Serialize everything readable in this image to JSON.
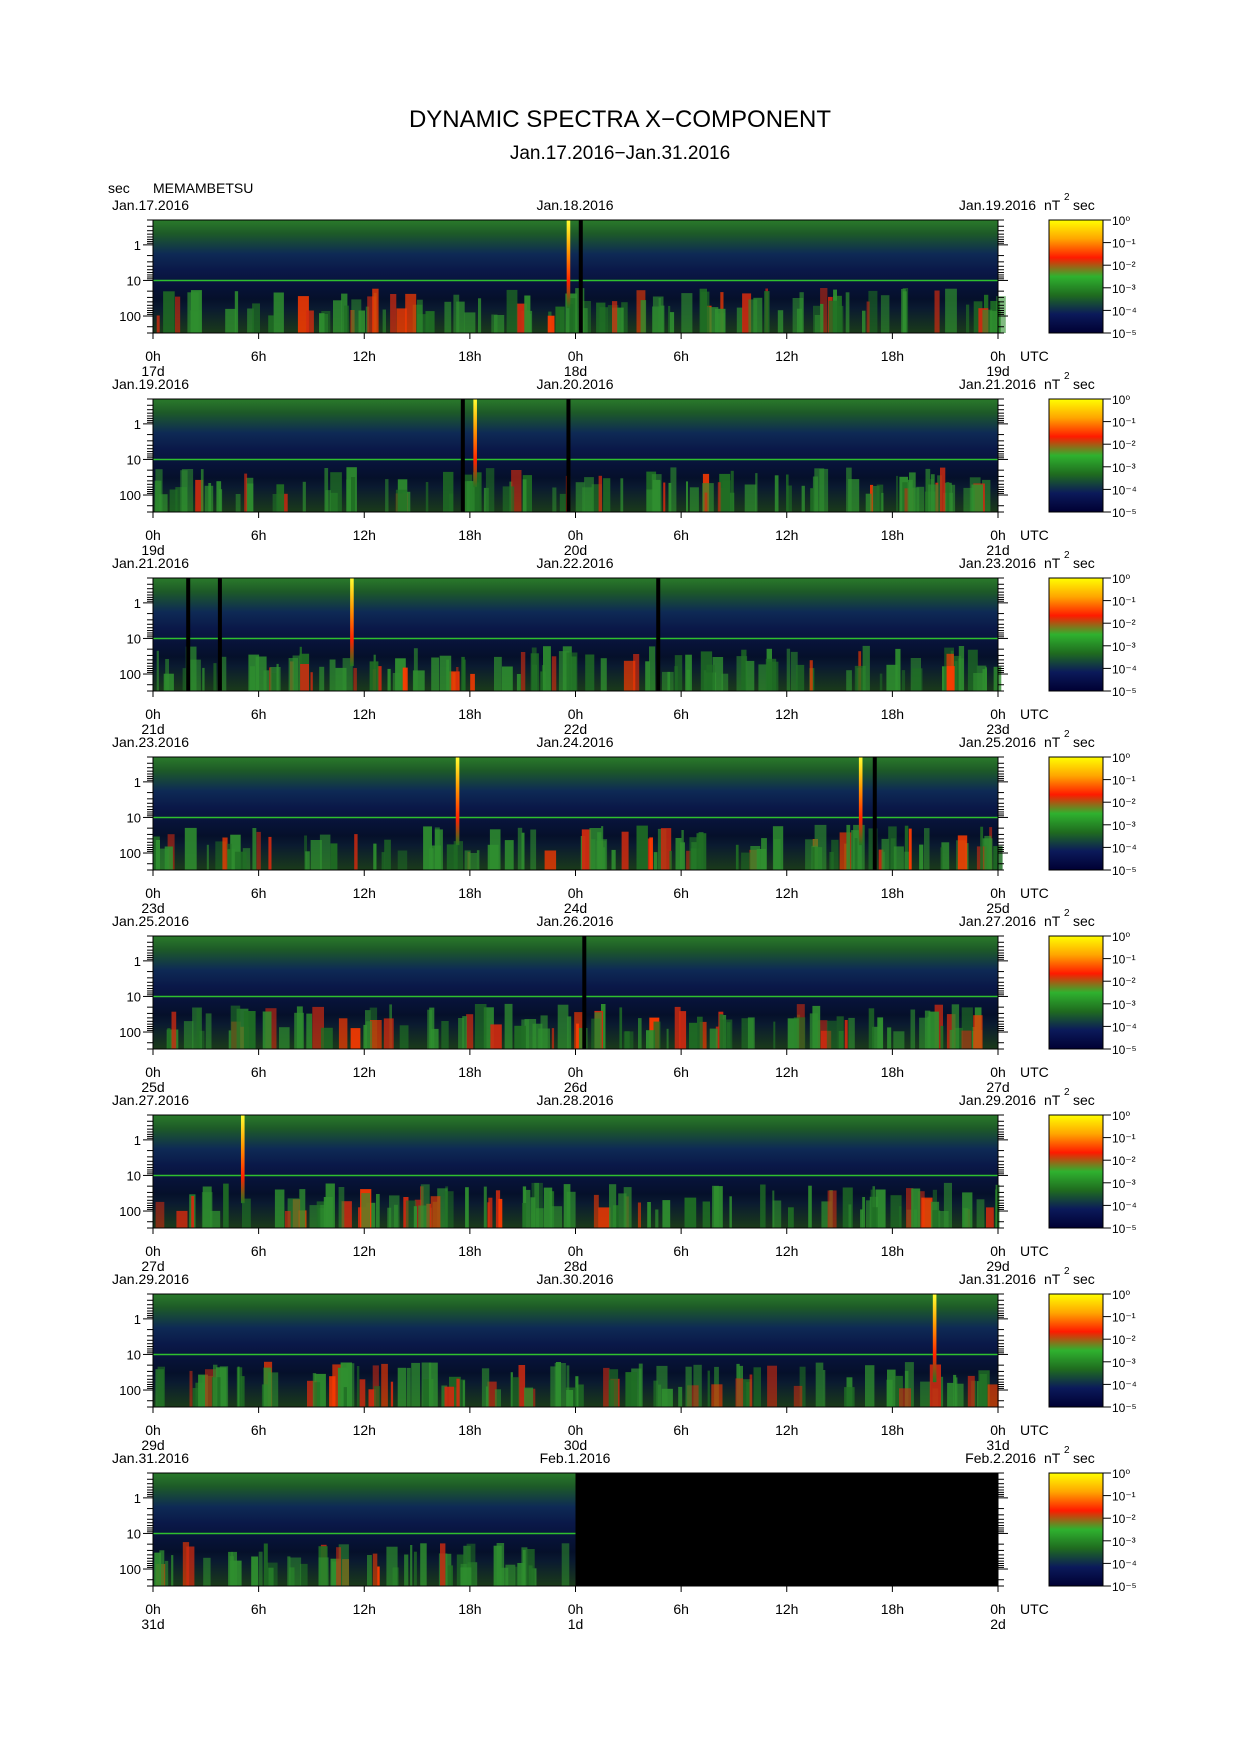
{
  "title": "DYNAMIC SPECTRA X−COMPONENT",
  "subtitle": "Jan.17.2016−Jan.31.2016",
  "y_unit": "sec",
  "station": "MEMAMBETSU",
  "colorbar_unit": "nT",
  "colorbar_unit_sup": "2",
  "colorbar_unit_suffix": "sec",
  "chart_data": {
    "type": "heatmap",
    "title": "DYNAMIC SPECTRA X−COMPONENT",
    "subtitle": "Jan.17.2016−Jan.31.2016",
    "ylabel": "sec",
    "y_scale": "log",
    "y_ticks": [
      "1",
      "10",
      "100"
    ],
    "y_range_sec": [
      0.2,
      300
    ],
    "x_ticks": [
      "0h",
      "6h",
      "12h",
      "18h",
      "0h",
      "6h",
      "12h",
      "18h",
      "0h"
    ],
    "x_unit": "UTC",
    "colorbar": {
      "label": "nT²sec",
      "scale": "log",
      "ticks": [
        "10⁰",
        "10⁻¹",
        "10⁻²",
        "10⁻³",
        "10⁻⁴",
        "10⁻⁵"
      ],
      "range": [
        1e-05,
        1
      ],
      "colors": [
        "#000033",
        "#0b1a5a",
        "#1f6b1f",
        "#2fb22f",
        "#ff1a00",
        "#ffa500",
        "#ffff00"
      ]
    },
    "panels": [
      {
        "start": "Jan.17.2016",
        "mid": "Jan.18.2016",
        "end": "Jan.19.2016",
        "days": [
          "17d",
          "18d",
          "19d"
        ],
        "bursts_h": [
          23.6
        ],
        "gaps_h": [
          24.3
        ],
        "no_data_from_h": null
      },
      {
        "start": "Jan.19.2016",
        "mid": "Jan.20.2016",
        "end": "Jan.21.2016",
        "days": [
          "19d",
          "20d",
          "21d"
        ],
        "bursts_h": [
          18.3
        ],
        "gaps_h": [
          17.6,
          23.6
        ],
        "no_data_from_h": null
      },
      {
        "start": "Jan.21.2016",
        "mid": "Jan.22.2016",
        "end": "Jan.23.2016",
        "days": [
          "21d",
          "22d",
          "23d"
        ],
        "bursts_h": [
          11.3
        ],
        "gaps_h": [
          2.0,
          3.8,
          28.7
        ],
        "no_data_from_h": null
      },
      {
        "start": "Jan.23.2016",
        "mid": "Jan.24.2016",
        "end": "Jan.25.2016",
        "days": [
          "23d",
          "24d",
          "25d"
        ],
        "bursts_h": [
          17.3,
          40.2
        ],
        "gaps_h": [
          41.0
        ],
        "no_data_from_h": null
      },
      {
        "start": "Jan.25.2016",
        "mid": "Jan.26.2016",
        "end": "Jan.27.2016",
        "days": [
          "25d",
          "26d",
          "27d"
        ],
        "bursts_h": [],
        "gaps_h": [
          24.5
        ],
        "no_data_from_h": null
      },
      {
        "start": "Jan.27.2016",
        "mid": "Jan.28.2016",
        "end": "Jan.29.2016",
        "days": [
          "27d",
          "28d",
          "29d"
        ],
        "bursts_h": [
          5.1
        ],
        "gaps_h": [],
        "no_data_from_h": null
      },
      {
        "start": "Jan.29.2016",
        "mid": "Jan.30.2016",
        "end": "Jan.31.2016",
        "days": [
          "29d",
          "30d",
          "31d"
        ],
        "bursts_h": [
          44.4
        ],
        "gaps_h": [],
        "no_data_from_h": null
      },
      {
        "start": "Jan.31.2016",
        "mid": "Feb.1.2016",
        "end": "Feb.2.2016",
        "days": [
          "31d",
          "1d",
          "2d"
        ],
        "bursts_h": [],
        "gaps_h": [],
        "no_data_from_h": 24.0
      }
    ]
  }
}
